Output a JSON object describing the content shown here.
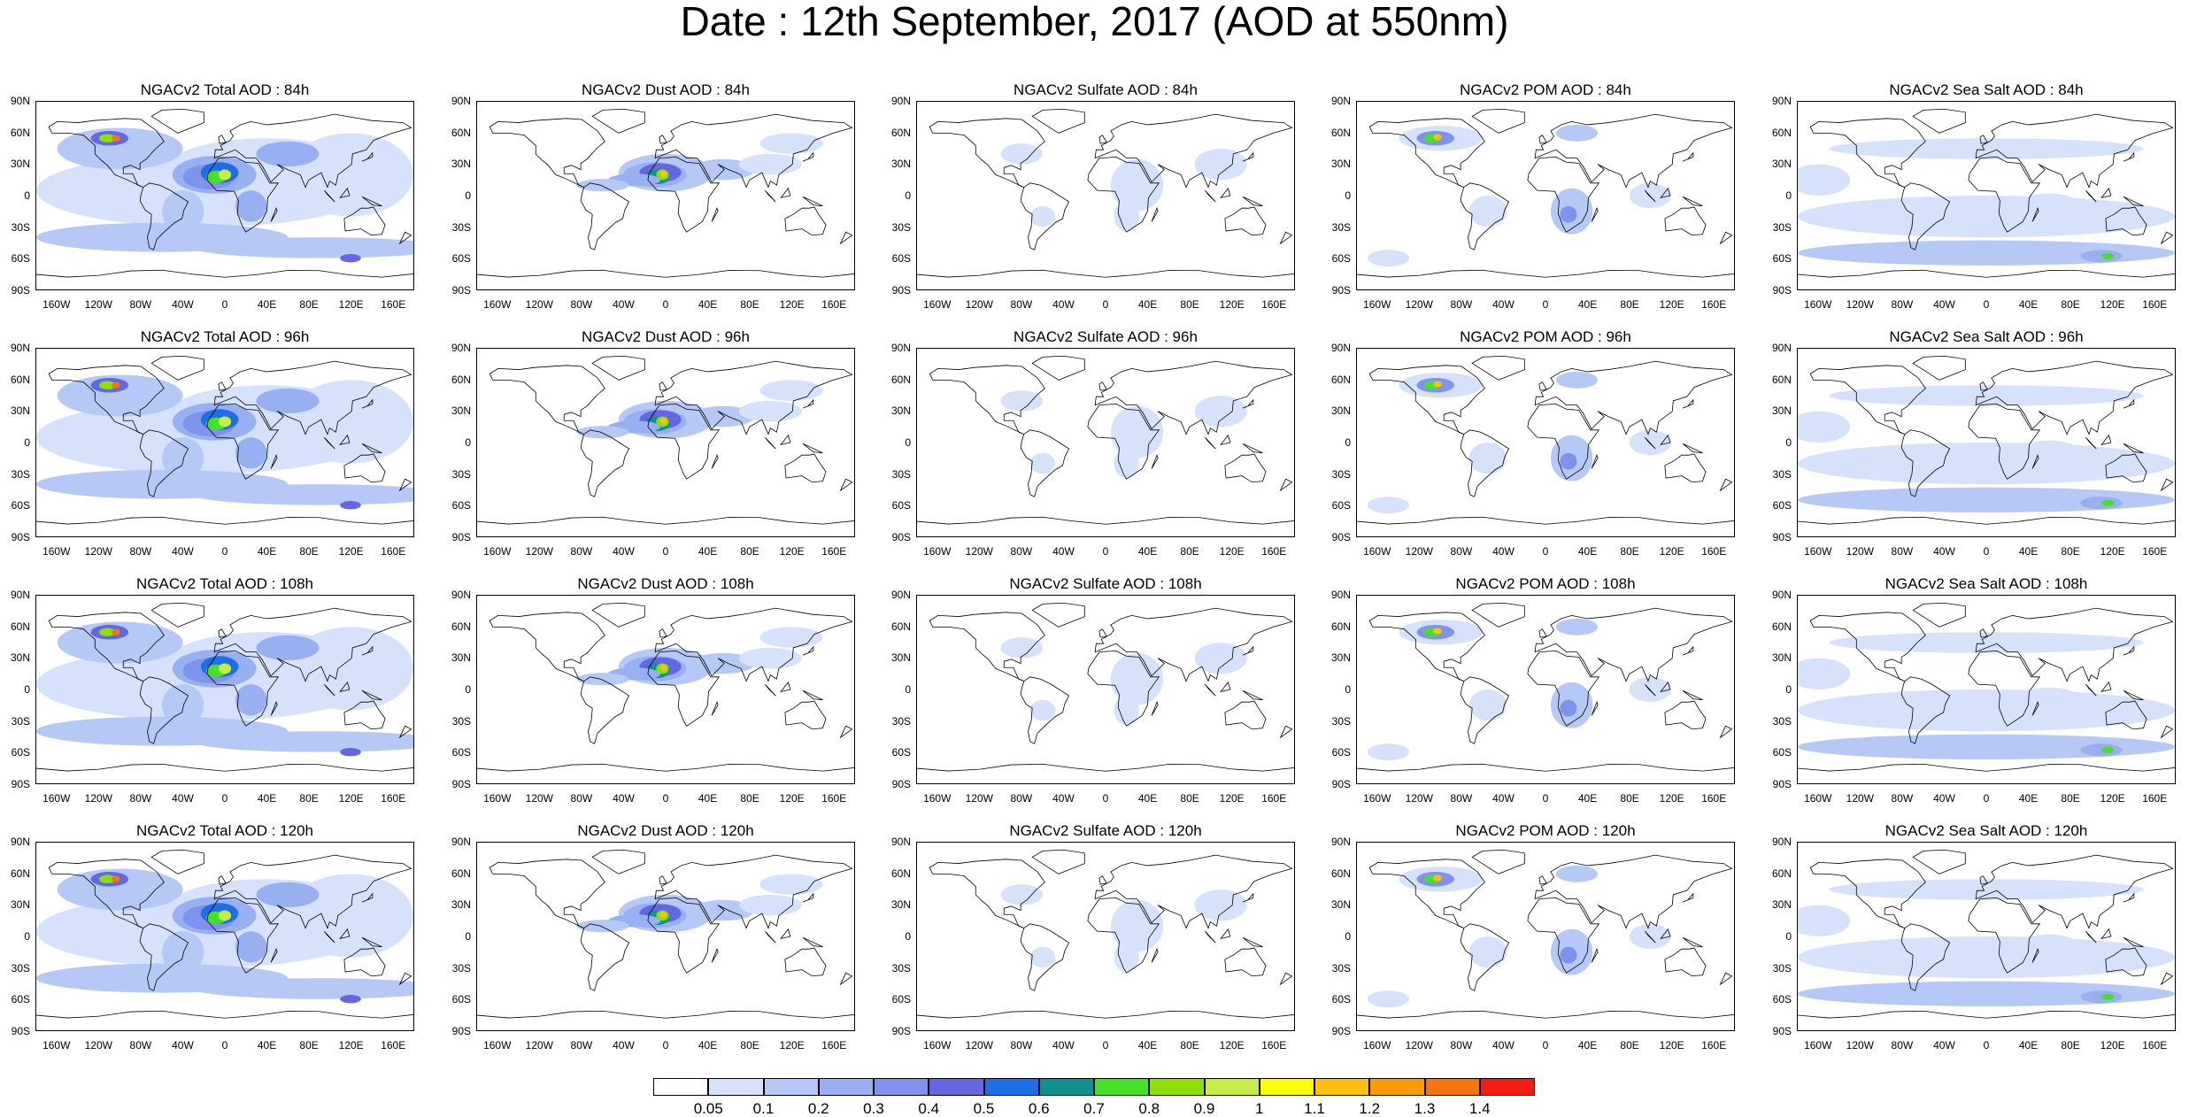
{
  "title": "Date : 12th September, 2017 (AOD at 550nm)",
  "panels": [
    {
      "title": "NGACv2 Total AOD : 84h",
      "kind": "total"
    },
    {
      "title": "NGACv2 Dust AOD : 84h",
      "kind": "dust"
    },
    {
      "title": "NGACv2 Sulfate AOD : 84h",
      "kind": "sulfate"
    },
    {
      "title": "NGACv2 POM AOD : 84h",
      "kind": "pom"
    },
    {
      "title": "NGACv2 Sea Salt AOD : 84h",
      "kind": "seasalt"
    },
    {
      "title": "NGACv2 Total AOD : 96h",
      "kind": "total"
    },
    {
      "title": "NGACv2 Dust AOD : 96h",
      "kind": "dust"
    },
    {
      "title": "NGACv2 Sulfate AOD : 96h",
      "kind": "sulfate"
    },
    {
      "title": "NGACv2 POM AOD : 96h",
      "kind": "pom"
    },
    {
      "title": "NGACv2 Sea Salt AOD : 96h",
      "kind": "seasalt"
    },
    {
      "title": "NGACv2 Total AOD : 108h",
      "kind": "total"
    },
    {
      "title": "NGACv2 Dust AOD : 108h",
      "kind": "dust"
    },
    {
      "title": "NGACv2 Sulfate AOD : 108h",
      "kind": "sulfate"
    },
    {
      "title": "NGACv2 POM AOD : 108h",
      "kind": "pom"
    },
    {
      "title": "NGACv2 Sea Salt AOD : 108h",
      "kind": "seasalt"
    },
    {
      "title": "NGACv2 Total AOD : 120h",
      "kind": "total"
    },
    {
      "title": "NGACv2 Dust AOD : 120h",
      "kind": "dust"
    },
    {
      "title": "NGACv2 Sulfate AOD : 120h",
      "kind": "sulfate"
    },
    {
      "title": "NGACv2 POM AOD : 120h",
      "kind": "pom"
    },
    {
      "title": "NGACv2 Sea Salt  AOD : 120h",
      "kind": "seasalt"
    }
  ],
  "lat_ticks": [
    "90N",
    "60N",
    "30N",
    "0",
    "30S",
    "60S",
    "90S"
  ],
  "lon_ticks": [
    "160W",
    "120W",
    "80W",
    "40W",
    "0",
    "40E",
    "80E",
    "120E",
    "160E"
  ],
  "colorbar": {
    "labels": [
      "0.05",
      "0.1",
      "0.2",
      "0.3",
      "0.4",
      "0.5",
      "0.6",
      "0.7",
      "0.8",
      "0.9",
      "1",
      "1.1",
      "1.2",
      "1.3",
      "1.4"
    ],
    "colors": [
      "#ffffff",
      "#d6e2fb",
      "#b5c8f6",
      "#98aff2",
      "#7f92ee",
      "#6566e4",
      "#1f6ee8",
      "#119090",
      "#44e02a",
      "#8be00a",
      "#c2ee47",
      "#fdfd0c",
      "#fcc010",
      "#fb9b0c",
      "#f67412",
      "#f31b13"
    ]
  }
}
